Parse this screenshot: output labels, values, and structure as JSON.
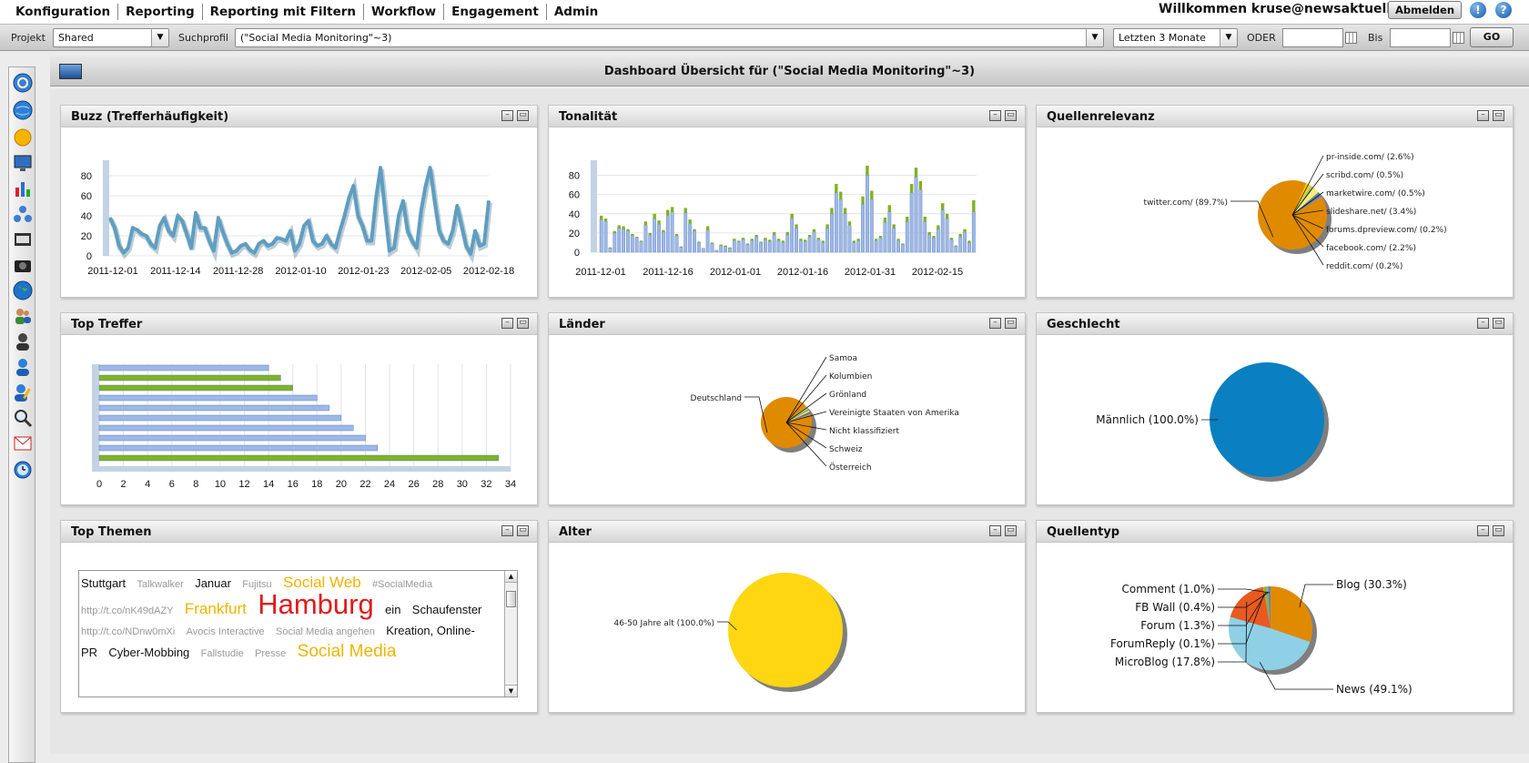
{
  "menu": {
    "items": [
      "Konfiguration",
      "Reporting",
      "Reporting mit Filtern",
      "Workflow",
      "Engagement",
      "Admin"
    ]
  },
  "header": {
    "welcome": "Willkommen kruse@newsaktuell.de",
    "logout_label": "Abmelden",
    "alert_icon": "!",
    "help_icon": "?"
  },
  "filters": {
    "project_label": "Projekt",
    "project_value": "Shared",
    "search_profile_label": "Suchprofil",
    "search_profile_value": "(\"Social Media Monitoring\"~3)",
    "period_value": "Letzten 3 Monate",
    "or_label": "ODER",
    "to_label": "Bis",
    "from_date": "",
    "to_date": "",
    "go_label": "GO"
  },
  "sidebar_icons": [
    "globe-search-icon",
    "globe-icon",
    "sun-icon",
    "monitor-icon",
    "bar-chart-icon",
    "network-icon",
    "newspaper-icon",
    "camera-icon",
    "world-icon",
    "users-icon",
    "user-icon",
    "user-blue-icon",
    "edit-user-icon",
    "magnifier-icon",
    "mail-icon",
    "clock-icon"
  ],
  "dashboard": {
    "title": "Dashboard Übersicht für (\"Social Media Monitoring\"~3)",
    "panels": {
      "buzz": "Buzz (Trefferhäufigkeit)",
      "tonality": "Tonalität",
      "source_relevance": "Quellenrelevanz",
      "top_hits": "Top Treffer",
      "countries": "Länder",
      "gender": "Geschlecht",
      "top_topics": "Top Themen",
      "age": "Alter",
      "source_type": "Quellentyp"
    }
  },
  "top_topics": [
    {
      "text": "Stuttgart",
      "size": 13,
      "color": "#111111"
    },
    {
      "text": "Talkwalker",
      "size": 11,
      "color": "#999999"
    },
    {
      "text": "Januar",
      "size": 13,
      "color": "#111111"
    },
    {
      "text": "Fujitsu",
      "size": 11,
      "color": "#999999"
    },
    {
      "text": "Social Web",
      "size": 17,
      "color": "#f0b400"
    },
    {
      "text": "#SocialMedia",
      "size": 11,
      "color": "#999999"
    },
    {
      "text": "http://t.co/nK49dAZY",
      "size": 11,
      "color": "#999999"
    },
    {
      "text": "Frankfurt",
      "size": 17,
      "color": "#f0b400"
    },
    {
      "text": "Hamburg",
      "size": 31,
      "color": "#e01b1b"
    },
    {
      "text": "ein",
      "size": 13,
      "color": "#111111"
    },
    {
      "text": "Schaufenster",
      "size": 13,
      "color": "#111111"
    },
    {
      "text": "http://t.co/NDnw0mXi",
      "size": 11,
      "color": "#999999"
    },
    {
      "text": "Avocis Interactive",
      "size": 11,
      "color": "#999999"
    },
    {
      "text": "Social Media angehen",
      "size": 11,
      "color": "#999999"
    },
    {
      "text": "Kreation, Online-PR",
      "size": 13,
      "color": "#111111"
    },
    {
      "text": "Cyber-Mobbing",
      "size": 13,
      "color": "#111111"
    },
    {
      "text": "Fallstudie",
      "size": 11,
      "color": "#999999"
    },
    {
      "text": "Presse",
      "size": 11,
      "color": "#999999"
    },
    {
      "text": "Social Media",
      "size": 19,
      "color": "#f0b400"
    }
  ],
  "chart_data": [
    {
      "id": "buzz",
      "type": "line",
      "title": "Buzz (Trefferhäufigkeit)",
      "ylim": [
        0,
        90
      ],
      "yticks": [
        0,
        20,
        40,
        60,
        80
      ],
      "xticks": [
        "2011-12-01",
        "2011-12-14",
        "2011-12-28",
        "2012-01-10",
        "2012-01-23",
        "2012-02-05",
        "2012-02-18"
      ],
      "color": "#5f9ec0",
      "values": [
        38,
        28,
        10,
        3,
        8,
        28,
        26,
        22,
        20,
        12,
        8,
        30,
        38,
        25,
        20,
        40,
        35,
        22,
        8,
        43,
        28,
        28,
        15,
        5,
        38,
        24,
        12,
        3,
        5,
        10,
        12,
        6,
        3,
        12,
        15,
        10,
        12,
        18,
        17,
        15,
        25,
        5,
        12,
        30,
        35,
        15,
        10,
        12,
        20,
        12,
        8,
        25,
        40,
        58,
        70,
        40,
        30,
        15,
        15,
        58,
        88,
        45,
        5,
        8,
        40,
        55,
        25,
        15,
        8,
        45,
        70,
        88,
        55,
        25,
        15,
        12,
        25,
        50,
        30,
        10,
        2,
        25,
        10,
        12,
        55
      ]
    },
    {
      "id": "tonality",
      "type": "bar",
      "title": "Tonalität",
      "ylim": [
        0,
        90
      ],
      "yticks": [
        0,
        20,
        40,
        60,
        80
      ],
      "xticks": [
        "2011-12-01",
        "2011-12-16",
        "2012-01-01",
        "2012-01-16",
        "2012-01-31",
        "2012-02-15"
      ],
      "series": [
        {
          "name": "",
          "color": "#9db8e8",
          "values": [
            34,
            32,
            4,
            20,
            25,
            24,
            22,
            17,
            15,
            11,
            28,
            18,
            35,
            29,
            21,
            38,
            42,
            17,
            5,
            41,
            30,
            22,
            10,
            4,
            23,
            9,
            2,
            7,
            6,
            4,
            12,
            11,
            13,
            8,
            12,
            16,
            10,
            13,
            11,
            18,
            12,
            10,
            18,
            35,
            25,
            12,
            11,
            16,
            21,
            13,
            10,
            25,
            40,
            62,
            55,
            40,
            28,
            10,
            12,
            50,
            80,
            55,
            12,
            15,
            31,
            42,
            25,
            12,
            8,
            32,
            62,
            78,
            65,
            32,
            18,
            15,
            24,
            44,
            35,
            13,
            6,
            16,
            21,
            10,
            42
          ]
        },
        {
          "name": "",
          "color": "#7fb321",
          "values": [
            4,
            3,
            1,
            2,
            3,
            3,
            2,
            2,
            1,
            1,
            4,
            2,
            5,
            4,
            2,
            6,
            5,
            2,
            1,
            5,
            4,
            2,
            1,
            0,
            4,
            1,
            0,
            1,
            1,
            1,
            2,
            1,
            2,
            1,
            2,
            2,
            1,
            2,
            2,
            3,
            2,
            2,
            3,
            5,
            4,
            2,
            2,
            2,
            3,
            2,
            2,
            4,
            6,
            9,
            8,
            6,
            4,
            2,
            2,
            8,
            10,
            9,
            2,
            2,
            5,
            7,
            4,
            2,
            1,
            5,
            9,
            10,
            9,
            5,
            3,
            2,
            4,
            7,
            5,
            2,
            1,
            3,
            3,
            2,
            12
          ]
        }
      ]
    },
    {
      "id": "source_relevance",
      "type": "pie",
      "title": "Quellenrelevanz",
      "slices": [
        {
          "label": "twitter.com/ (89.7%)",
          "value": 89.7,
          "color": "#e08a00"
        },
        {
          "label": "pr-inside.com/ (2.6%)",
          "value": 2.6,
          "color": "#ffd000"
        },
        {
          "label": "scribd.com/ (0.5%)",
          "value": 0.5,
          "color": "#8fd0e6"
        },
        {
          "label": "marketwire.com/ (0.5%)",
          "value": 0.5,
          "color": "#8ab840"
        },
        {
          "label": "slideshare.net/ (3.4%)",
          "value": 3.4,
          "color": "#f0f080"
        },
        {
          "label": "forums.dpreview.com/ (0.2%)",
          "value": 0.2,
          "color": "#c05020"
        },
        {
          "label": "facebook.com/ (2.2%)",
          "value": 2.2,
          "color": "#5a88b8"
        },
        {
          "label": "reddit.com/ (0.2%)",
          "value": 0.2,
          "color": "#a0a0a0"
        }
      ]
    },
    {
      "id": "top_hits",
      "type": "bar",
      "orientation": "horizontal",
      "title": "Top Treffer",
      "xlim": [
        0,
        34
      ],
      "xticks": [
        0,
        2,
        4,
        6,
        8,
        10,
        12,
        14,
        16,
        18,
        20,
        22,
        24,
        26,
        28,
        30,
        32,
        34
      ],
      "values": [
        14,
        15,
        16,
        18,
        19,
        20,
        21,
        22,
        23,
        33
      ],
      "colors": [
        "#9db8e8",
        "#7fb321",
        "#7fb321",
        "#9db8e8",
        "#9db8e8",
        "#9db8e8",
        "#9db8e8",
        "#9db8e8",
        "#9db8e8",
        "#7fb321"
      ]
    },
    {
      "id": "countries",
      "type": "pie",
      "title": "Länder",
      "slices": [
        {
          "label": "Deutschland",
          "value": 94.0,
          "color": "#e08a00"
        },
        {
          "label": "Samoa",
          "value": 1.0,
          "color": "#ffd000"
        },
        {
          "label": "Kolumbien",
          "value": 1.0,
          "color": "#8fd0e6"
        },
        {
          "label": "Grönland",
          "value": 1.0,
          "color": "#8ab840"
        },
        {
          "label": "Vereinigte Staaten von Amerika",
          "value": 1.0,
          "color": "#f0f080"
        },
        {
          "label": "Nicht klassifiziert",
          "value": 0.8,
          "color": "#c05020"
        },
        {
          "label": "Schweiz",
          "value": 0.6,
          "color": "#5a88b8"
        },
        {
          "label": "Österreich",
          "value": 0.6,
          "color": "#a0a0a0"
        }
      ]
    },
    {
      "id": "gender",
      "type": "pie",
      "title": "Geschlecht",
      "slices": [
        {
          "label": "Männlich (100.0%)",
          "value": 100.0,
          "color": "#0a7fc2"
        }
      ]
    },
    {
      "id": "age",
      "type": "pie",
      "title": "Alter",
      "slices": [
        {
          "label": "46-50 Jahre alt (100.0%)",
          "value": 100.0,
          "color": "#ffd612"
        }
      ]
    },
    {
      "id": "source_type",
      "type": "pie",
      "title": "Quellentyp",
      "slices": [
        {
          "label": "Blog (30.3%)",
          "value": 30.3,
          "color": "#e08a00"
        },
        {
          "label": "News (49.1%)",
          "value": 49.1,
          "color": "#8fd0e6"
        },
        {
          "label": "MicroBlog (17.8%)",
          "value": 17.8,
          "color": "#e85a20"
        },
        {
          "label": "ForumReply (0.1%)",
          "value": 0.1,
          "color": "#ffd000"
        },
        {
          "label": "Forum (1.3%)",
          "value": 1.3,
          "color": "#8ab840"
        },
        {
          "label": "FB Wall (0.4%)",
          "value": 0.4,
          "color": "#a0a0a0"
        },
        {
          "label": "Comment (1.0%)",
          "value": 1.0,
          "color": "#5a88b8"
        }
      ]
    }
  ]
}
